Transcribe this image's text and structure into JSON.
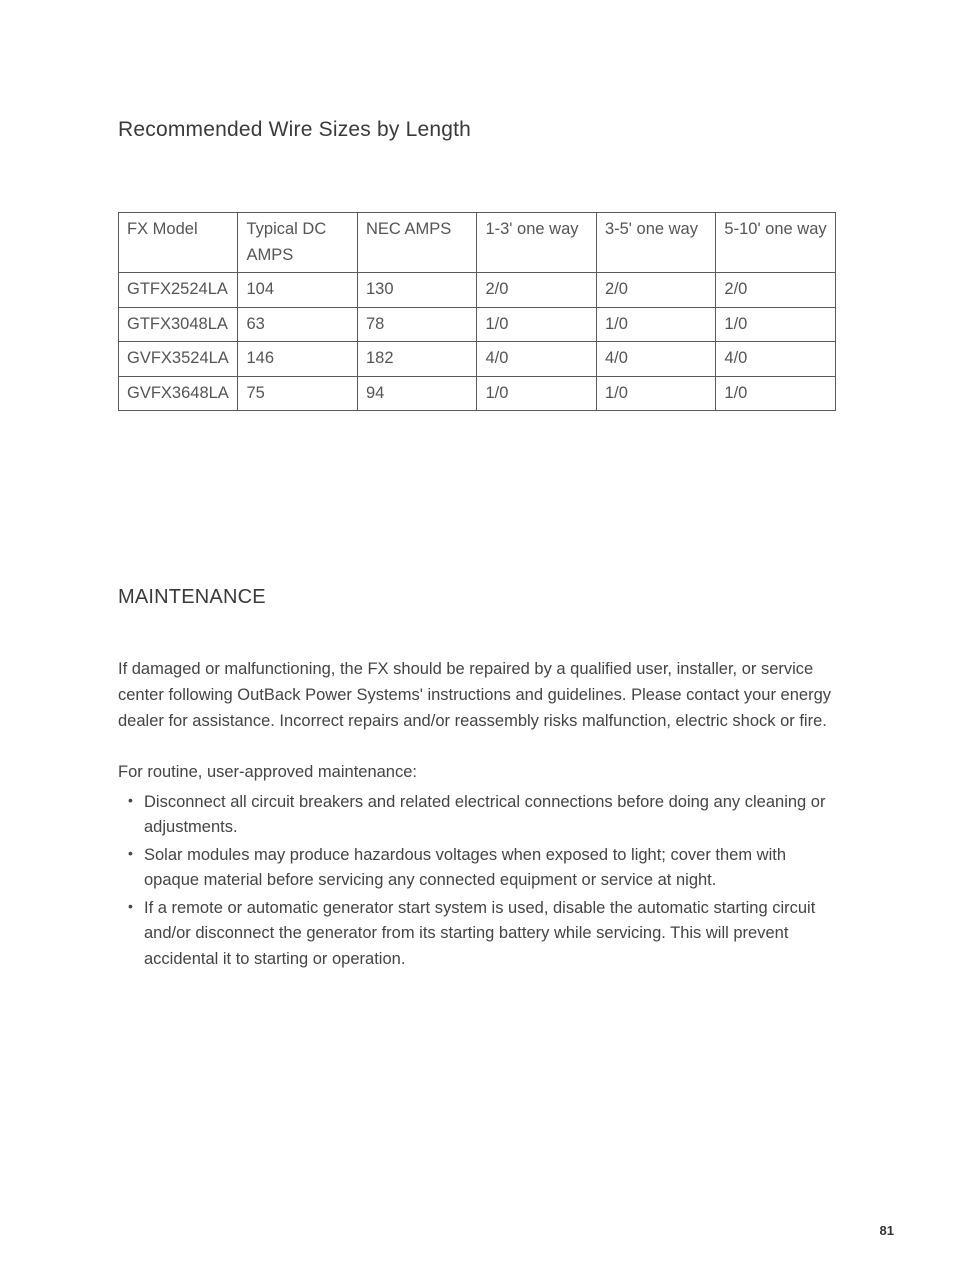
{
  "section1": {
    "heading": "Recommended Wire Sizes by Length"
  },
  "table": {
    "type": "table",
    "border_color": "#5a5a5a",
    "text_color": "#555555",
    "font_size_pt": 12,
    "columns": [
      "FX Model",
      "Typical DC AMPS",
      "NEC AMPS",
      "1-3' one way",
      "3-5' one way",
      "5-10' one way"
    ],
    "rows": [
      [
        "GTFX2524LA",
        "104",
        "130",
        "2/0",
        "2/0",
        "2/0"
      ],
      [
        "GTFX3048LA",
        "63",
        "78",
        "1/0",
        "1/0",
        "1/0"
      ],
      [
        "GVFX3524LA",
        "146",
        "182",
        "4/0",
        "4/0",
        "4/0"
      ],
      [
        "GVFX3648LA",
        "75",
        "94",
        "1/0",
        "1/0",
        "1/0"
      ]
    ]
  },
  "section2": {
    "heading": "MAINTENANCE",
    "para1": "If damaged or malfunctioning, the FX should be repaired by a qualified user, installer, or service center following OutBack Power Systems' instructions and guidelines. Please contact your energy dealer for assistance. Incorrect repairs and/or reassembly risks malfunction, electric shock or fire.",
    "intro": "For routine, user-approved maintenance:",
    "bullets": [
      "Disconnect all circuit breakers and related electrical connections before doing any cleaning or adjustments.",
      "Solar modules may produce hazardous voltages when exposed to light; cover them with opaque material before servicing any connected equipment or service at night.",
      "If a remote or automatic generator start system is used, disable the automatic starting circuit and/or disconnect the generator from its starting battery while servicing.  This will prevent accidental it to starting or operation."
    ]
  },
  "page_number": "81",
  "style": {
    "background_color": "#ffffff",
    "heading_color": "#3a3a3a",
    "body_text_color": "#444444",
    "heading1_fontsize_pt": 16,
    "heading2_fontsize_pt": 15,
    "body_fontsize_pt": 12
  }
}
